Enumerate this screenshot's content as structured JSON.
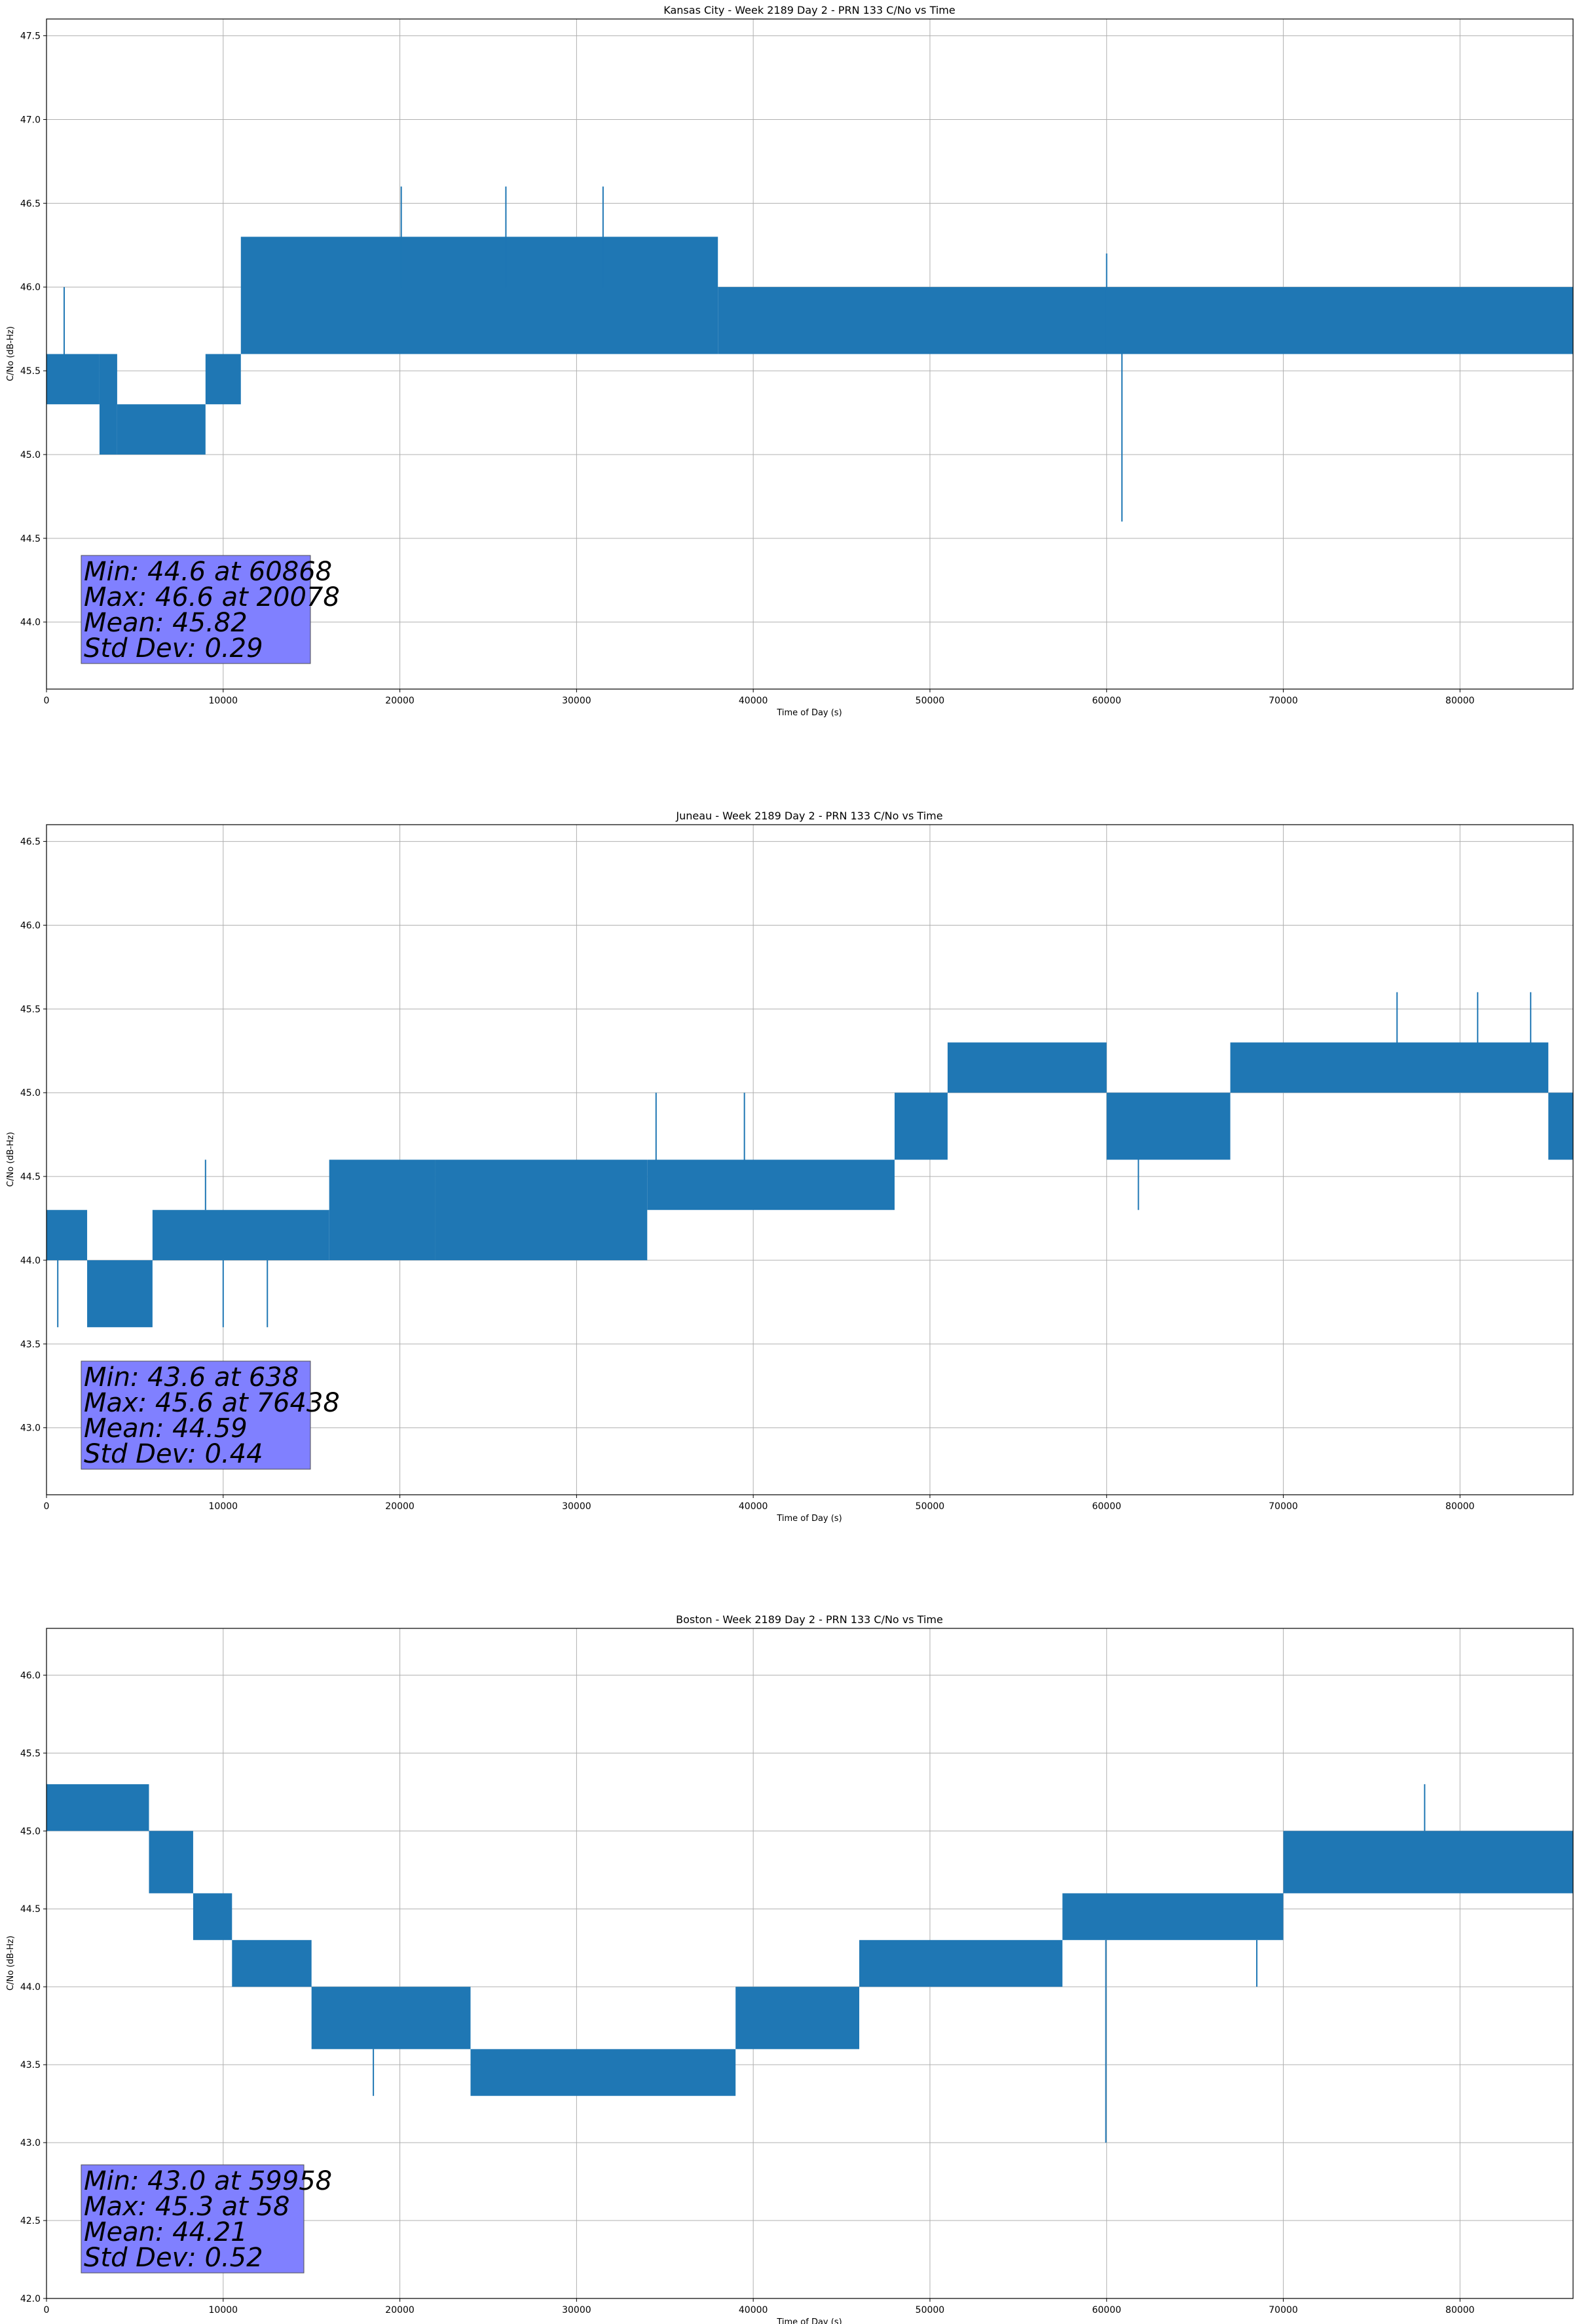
{
  "chart_data": [
    {
      "type": "line",
      "title": "Kansas City - Week 2189 Day 2 - PRN 133 C/No vs Time",
      "xlabel": "Time of Day (s)",
      "ylabel": "C/No (dB-Hz)",
      "xlim": [
        0,
        86400
      ],
      "ylim": [
        43.6,
        47.6
      ],
      "xticks": [
        0,
        10000,
        20000,
        30000,
        40000,
        50000,
        60000,
        70000,
        80000
      ],
      "yticks": [
        44.0,
        44.5,
        45.0,
        45.5,
        46.0,
        46.5,
        47.0,
        47.5
      ],
      "grid": true,
      "series": [
        {
          "name": "PRN 133 C/No",
          "color": "#1f77b4",
          "bands": [
            {
              "x": [
                0,
                3000
              ],
              "low": 45.3,
              "high": 45.6
            },
            {
              "x": [
                3000,
                4000
              ],
              "low": 45.0,
              "high": 45.6
            },
            {
              "x": [
                4000,
                9000
              ],
              "low": 45.0,
              "high": 45.3
            },
            {
              "x": [
                9000,
                11000
              ],
              "low": 45.3,
              "high": 45.6
            },
            {
              "x": [
                11000,
                38000
              ],
              "low": 45.6,
              "high": 46.3
            },
            {
              "x": [
                38000,
                86400
              ],
              "low": 45.6,
              "high": 46.0
            }
          ],
          "spikes": [
            {
              "x": 20078,
              "low": 46.0,
              "high": 46.6
            },
            {
              "x": 26000,
              "low": 46.0,
              "high": 46.6
            },
            {
              "x": 31500,
              "low": 46.0,
              "high": 46.6
            },
            {
              "x": 60868,
              "low": 44.6,
              "high": 45.6
            },
            {
              "x": 60000,
              "low": 45.6,
              "high": 46.2
            },
            {
              "x": 1000,
              "low": 45.6,
              "high": 46.0
            }
          ]
        }
      ],
      "stats": {
        "min": "Min: 44.6 at 60868",
        "max": "Max: 46.6 at 20078",
        "mean": "Mean: 45.82",
        "std": "Std Dev: 0.29"
      }
    },
    {
      "type": "line",
      "title": "Juneau - Week 2189 Day 2 - PRN 133 C/No vs Time",
      "xlabel": "Time of Day (s)",
      "ylabel": "C/No (dB-Hz)",
      "xlim": [
        0,
        86400
      ],
      "ylim": [
        42.6,
        46.6
      ],
      "xticks": [
        0,
        10000,
        20000,
        30000,
        40000,
        50000,
        60000,
        70000,
        80000
      ],
      "yticks": [
        43.0,
        43.5,
        44.0,
        44.5,
        45.0,
        45.5,
        46.0,
        46.5
      ],
      "grid": true,
      "series": [
        {
          "name": "PRN 133 C/No",
          "color": "#1f77b4",
          "bands": [
            {
              "x": [
                0,
                2300
              ],
              "low": 44.0,
              "high": 44.3
            },
            {
              "x": [
                2300,
                6000
              ],
              "low": 43.6,
              "high": 44.0
            },
            {
              "x": [
                6000,
                16000
              ],
              "low": 44.0,
              "high": 44.3
            },
            {
              "x": [
                16000,
                22000
              ],
              "low": 44.0,
              "high": 44.6
            },
            {
              "x": [
                22000,
                34000
              ],
              "low": 44.0,
              "high": 44.6
            },
            {
              "x": [
                34000,
                48000
              ],
              "low": 44.3,
              "high": 44.6
            },
            {
              "x": [
                48000,
                51000
              ],
              "low": 44.6,
              "high": 45.0
            },
            {
              "x": [
                51000,
                60000
              ],
              "low": 45.0,
              "high": 45.3
            },
            {
              "x": [
                60000,
                67000
              ],
              "low": 44.6,
              "high": 45.0
            },
            {
              "x": [
                67000,
                85000
              ],
              "low": 45.0,
              "high": 45.3
            },
            {
              "x": [
                85000,
                86400
              ],
              "low": 44.6,
              "high": 45.0
            }
          ],
          "spikes": [
            {
              "x": 638,
              "low": 43.6,
              "high": 44.0
            },
            {
              "x": 76438,
              "low": 45.3,
              "high": 45.6
            },
            {
              "x": 81000,
              "low": 45.3,
              "high": 45.6
            },
            {
              "x": 84000,
              "low": 45.3,
              "high": 45.6
            },
            {
              "x": 34500,
              "low": 44.6,
              "high": 45.0
            },
            {
              "x": 39500,
              "low": 44.6,
              "high": 45.0
            },
            {
              "x": 10000,
              "low": 43.6,
              "high": 44.0
            },
            {
              "x": 12500,
              "low": 43.6,
              "high": 44.0
            },
            {
              "x": 9000,
              "low": 44.3,
              "high": 44.6
            },
            {
              "x": 61800,
              "low": 44.3,
              "high": 44.6
            }
          ]
        }
      ],
      "stats": {
        "min": "Min: 43.6 at 638",
        "max": "Max: 45.6 at 76438",
        "mean": "Mean: 44.59",
        "std": "Std Dev: 0.44"
      }
    },
    {
      "type": "line",
      "title": "Boston - Week 2189 Day 2 - PRN 133 C/No vs Time",
      "xlabel": "Time of Day (s)",
      "ylabel": "C/No (dB-Hz)",
      "xlim": [
        0,
        86400
      ],
      "ylim": [
        42.0,
        46.3
      ],
      "xticks": [
        0,
        10000,
        20000,
        30000,
        40000,
        50000,
        60000,
        70000,
        80000
      ],
      "yticks": [
        42.0,
        42.5,
        43.0,
        43.5,
        44.0,
        44.5,
        45.0,
        45.5,
        46.0
      ],
      "grid": true,
      "series": [
        {
          "name": "PRN 133 C/No",
          "color": "#1f77b4",
          "bands": [
            {
              "x": [
                0,
                5800
              ],
              "low": 45.0,
              "high": 45.3
            },
            {
              "x": [
                5800,
                8300
              ],
              "low": 44.6,
              "high": 45.0
            },
            {
              "x": [
                8300,
                10500
              ],
              "low": 44.3,
              "high": 44.6
            },
            {
              "x": [
                10500,
                15000
              ],
              "low": 44.0,
              "high": 44.3
            },
            {
              "x": [
                15000,
                24000
              ],
              "low": 43.6,
              "high": 44.0
            },
            {
              "x": [
                24000,
                39000
              ],
              "low": 43.3,
              "high": 43.6
            },
            {
              "x": [
                39000,
                46000
              ],
              "low": 43.6,
              "high": 44.0
            },
            {
              "x": [
                46000,
                57500
              ],
              "low": 44.0,
              "high": 44.3
            },
            {
              "x": [
                57500,
                70000
              ],
              "low": 44.3,
              "high": 44.6
            },
            {
              "x": [
                70000,
                86400
              ],
              "low": 44.6,
              "high": 45.0
            }
          ],
          "spikes": [
            {
              "x": 58,
              "low": 45.0,
              "high": 45.3
            },
            {
              "x": 59958,
              "low": 43.0,
              "high": 44.3
            },
            {
              "x": 78000,
              "low": 45.0,
              "high": 45.3
            },
            {
              "x": 18500,
              "low": 43.3,
              "high": 43.6
            },
            {
              "x": 68500,
              "low": 44.0,
              "high": 44.3
            }
          ]
        }
      ],
      "stats": {
        "min": "Min: 43.0 at 59958",
        "max": "Max: 45.3 at 58",
        "mean": "Mean: 44.21",
        "std": "Std Dev: 0.52"
      }
    }
  ]
}
